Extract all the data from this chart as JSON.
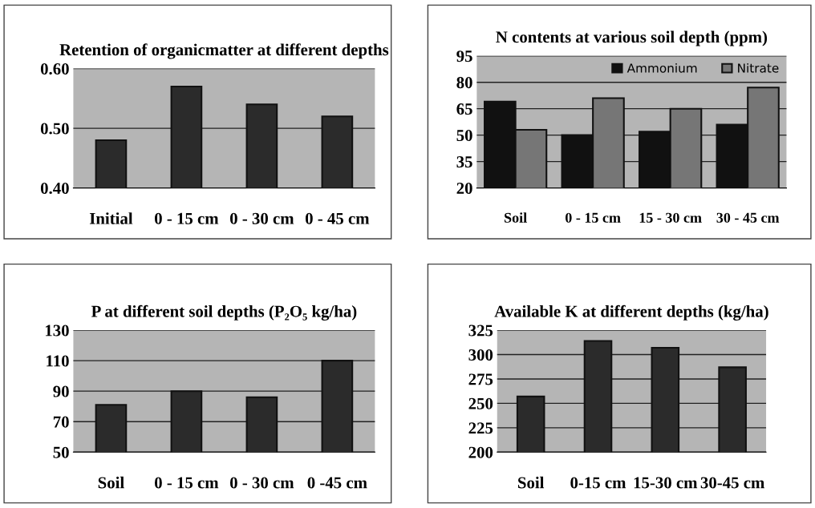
{
  "chart_data": [
    {
      "type": "bar",
      "title": "Retention of organicmatter at different depths",
      "categories": [
        "Initial",
        "0 - 15 cm",
        "0 - 30 cm",
        "0 - 45 cm"
      ],
      "values": [
        0.48,
        0.57,
        0.54,
        0.52
      ],
      "color": "#2b2b2b",
      "ylim": [
        0.4,
        0.6
      ],
      "yticks": [
        {
          "value": 0.4,
          "label": "0.40"
        },
        {
          "value": 0.5,
          "label": "0.50"
        },
        {
          "value": 0.6,
          "label": "0.60"
        }
      ],
      "grid": "y"
    },
    {
      "type": "bar",
      "title": "N contents at various soil depth (ppm)",
      "categories": [
        "Soil",
        "0 - 15 cm",
        "15 - 30 cm",
        "30 - 45 cm"
      ],
      "series": [
        {
          "name": "Ammonium",
          "color": "#111111",
          "values": [
            69,
            50,
            52,
            56
          ]
        },
        {
          "name": "Nitrate",
          "color": "#767676",
          "values": [
            53,
            71,
            65,
            77
          ]
        }
      ],
      "ylim": [
        20,
        95
      ],
      "yticks": [
        20,
        35,
        50,
        65,
        80,
        95
      ],
      "grid": "y",
      "legend": "top right"
    },
    {
      "type": "bar",
      "title": "P at different soil depths (P₂O₅ kg/ha)",
      "categories": [
        "Soil",
        "0 - 15 cm",
        "0 - 30 cm",
        "0 -45 cm"
      ],
      "values": [
        81,
        90,
        86,
        110
      ],
      "color": "#2b2b2b",
      "ylim": [
        50,
        130
      ],
      "yticks": [
        50,
        70,
        90,
        110,
        130
      ],
      "grid": "y"
    },
    {
      "type": "bar",
      "title": "Available K at different depths (kg/ha)",
      "categories": [
        "Soil",
        "0-15 cm",
        "15-30 cm",
        "30-45 cm"
      ],
      "values": [
        257,
        314,
        307,
        287
      ],
      "color": "#2b2b2b",
      "ylim": [
        200,
        325
      ],
      "yticks": [
        200,
        225,
        250,
        275,
        300,
        325
      ],
      "grid": "y"
    }
  ]
}
